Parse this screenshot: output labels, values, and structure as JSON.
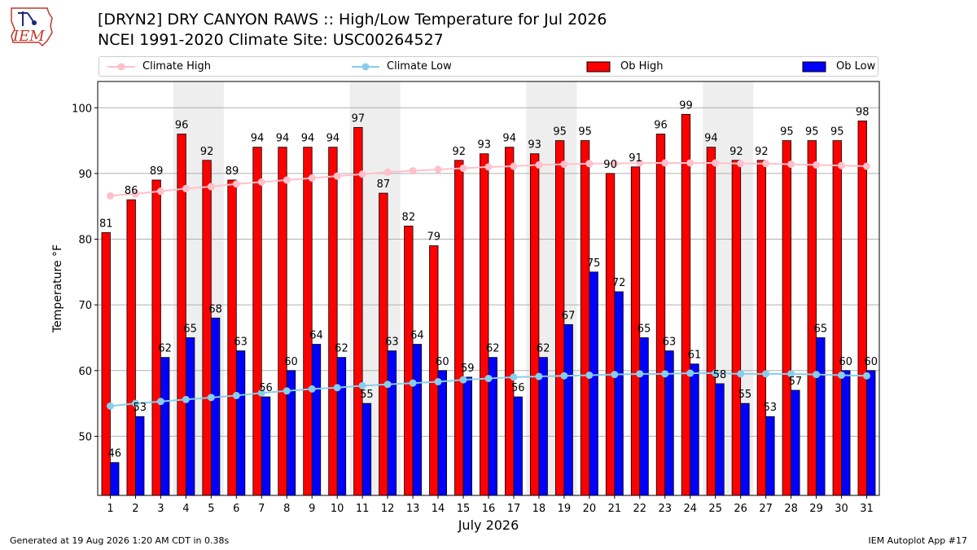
{
  "title_line1": "[DRYN2] DRY CANYON RAWS :: High/Low Temperature for Jul 2026",
  "title_line2": "NCEI 1991-2020 Climate Site: USC00264527",
  "logo_text": "IEM",
  "footer_left": "Generated at 19 Aug 2026 1:20 AM CDT in 0.38s",
  "footer_right": "IEM Autoplot App #17",
  "legend": [
    {
      "label": "Climate High",
      "kind": "line",
      "color": "#ffc0cb"
    },
    {
      "label": "Climate Low",
      "kind": "line",
      "color": "#87ceeb"
    },
    {
      "label": "Ob High",
      "kind": "bar",
      "color": "#ff0000"
    },
    {
      "label": "Ob Low",
      "kind": "bar",
      "color": "#0000ff"
    }
  ],
  "chart_data": {
    "type": "bar",
    "xlabel": "July 2026",
    "ylabel": "Temperature °F",
    "ylim": [
      41,
      104
    ],
    "yticks": [
      50,
      60,
      70,
      80,
      90,
      100
    ],
    "grid": true,
    "legend_position": "top",
    "categories": [
      "1",
      "2",
      "3",
      "4",
      "5",
      "6",
      "7",
      "8",
      "9",
      "10",
      "11",
      "12",
      "13",
      "14",
      "15",
      "16",
      "17",
      "18",
      "19",
      "20",
      "21",
      "22",
      "23",
      "24",
      "25",
      "26",
      "27",
      "28",
      "29",
      "30",
      "31"
    ],
    "weekend_shading": [
      [
        4,
        5
      ],
      [
        11,
        12
      ],
      [
        18,
        19
      ],
      [
        25,
        26
      ]
    ],
    "series": [
      {
        "name": "Ob High",
        "type": "bar",
        "color": "#ff0000",
        "values": [
          81,
          86,
          89,
          96,
          92,
          89,
          94,
          94,
          94,
          94,
          97,
          87,
          82,
          79,
          92,
          93,
          94,
          93,
          95,
          95,
          90,
          91,
          96,
          99,
          94,
          92,
          92,
          95,
          95,
          95,
          98
        ]
      },
      {
        "name": "Ob Low",
        "type": "bar",
        "color": "#0000ff",
        "values": [
          46,
          53,
          62,
          65,
          68,
          63,
          56,
          60,
          64,
          62,
          55,
          63,
          64,
          60,
          59,
          62,
          56,
          62,
          67,
          75,
          72,
          65,
          63,
          61,
          58,
          55,
          53,
          57,
          65,
          60,
          60
        ]
      },
      {
        "name": "Climate High",
        "type": "line",
        "color": "#ffc0cb",
        "values": [
          86.6,
          86.9,
          87.3,
          87.7,
          88.0,
          88.4,
          88.7,
          89.0,
          89.3,
          89.6,
          89.9,
          90.2,
          90.4,
          90.6,
          90.8,
          91.0,
          91.1,
          91.3,
          91.4,
          91.5,
          91.5,
          91.6,
          91.6,
          91.6,
          91.6,
          91.5,
          91.5,
          91.4,
          91.3,
          91.2,
          91.1
        ]
      },
      {
        "name": "Climate Low",
        "type": "line",
        "color": "#87ceeb",
        "values": [
          54.6,
          55.0,
          55.3,
          55.6,
          55.9,
          56.2,
          56.6,
          56.9,
          57.2,
          57.4,
          57.7,
          57.9,
          58.1,
          58.3,
          58.6,
          58.8,
          59.0,
          59.1,
          59.2,
          59.3,
          59.4,
          59.5,
          59.5,
          59.6,
          59.6,
          59.5,
          59.5,
          59.5,
          59.4,
          59.3,
          59.2
        ]
      }
    ]
  }
}
